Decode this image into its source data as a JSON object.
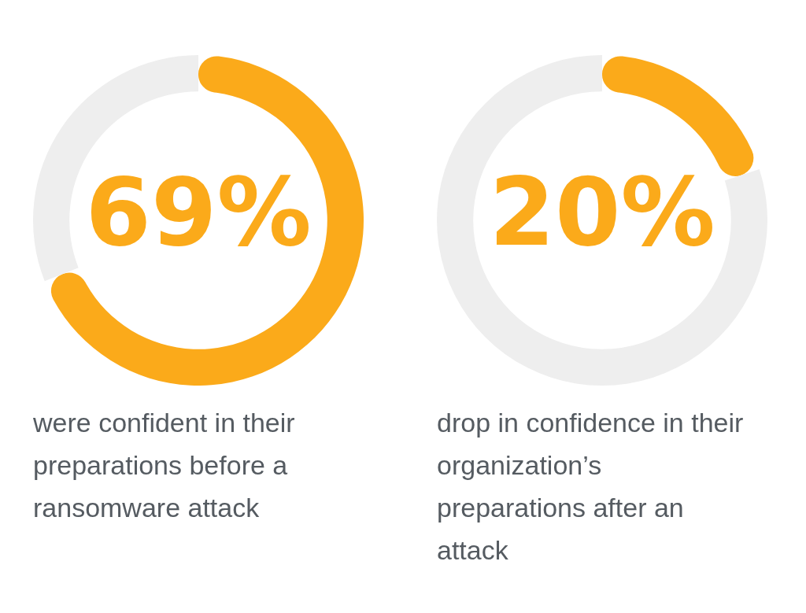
{
  "chart_data": [
    {
      "type": "donut",
      "categories": [
        null,
        null
      ],
      "values": [
        69,
        31
      ],
      "colors": [
        "#fbaa1a",
        "#eeeeee"
      ],
      "value_labels": [
        "69%",
        null
      ],
      "legend": false,
      "annotations": [
        "were confident in their preparations before a ransomware attack"
      ]
    },
    {
      "type": "donut",
      "categories": [
        null,
        null
      ],
      "values": [
        20,
        80
      ],
      "colors": [
        "#fbaa1a",
        "#eeeeee"
      ],
      "value_labels": [
        "20%",
        null
      ],
      "legend": false,
      "annotations": [
        "drop in confidence in their organization’s preparations after an attack"
      ]
    }
  ]
}
